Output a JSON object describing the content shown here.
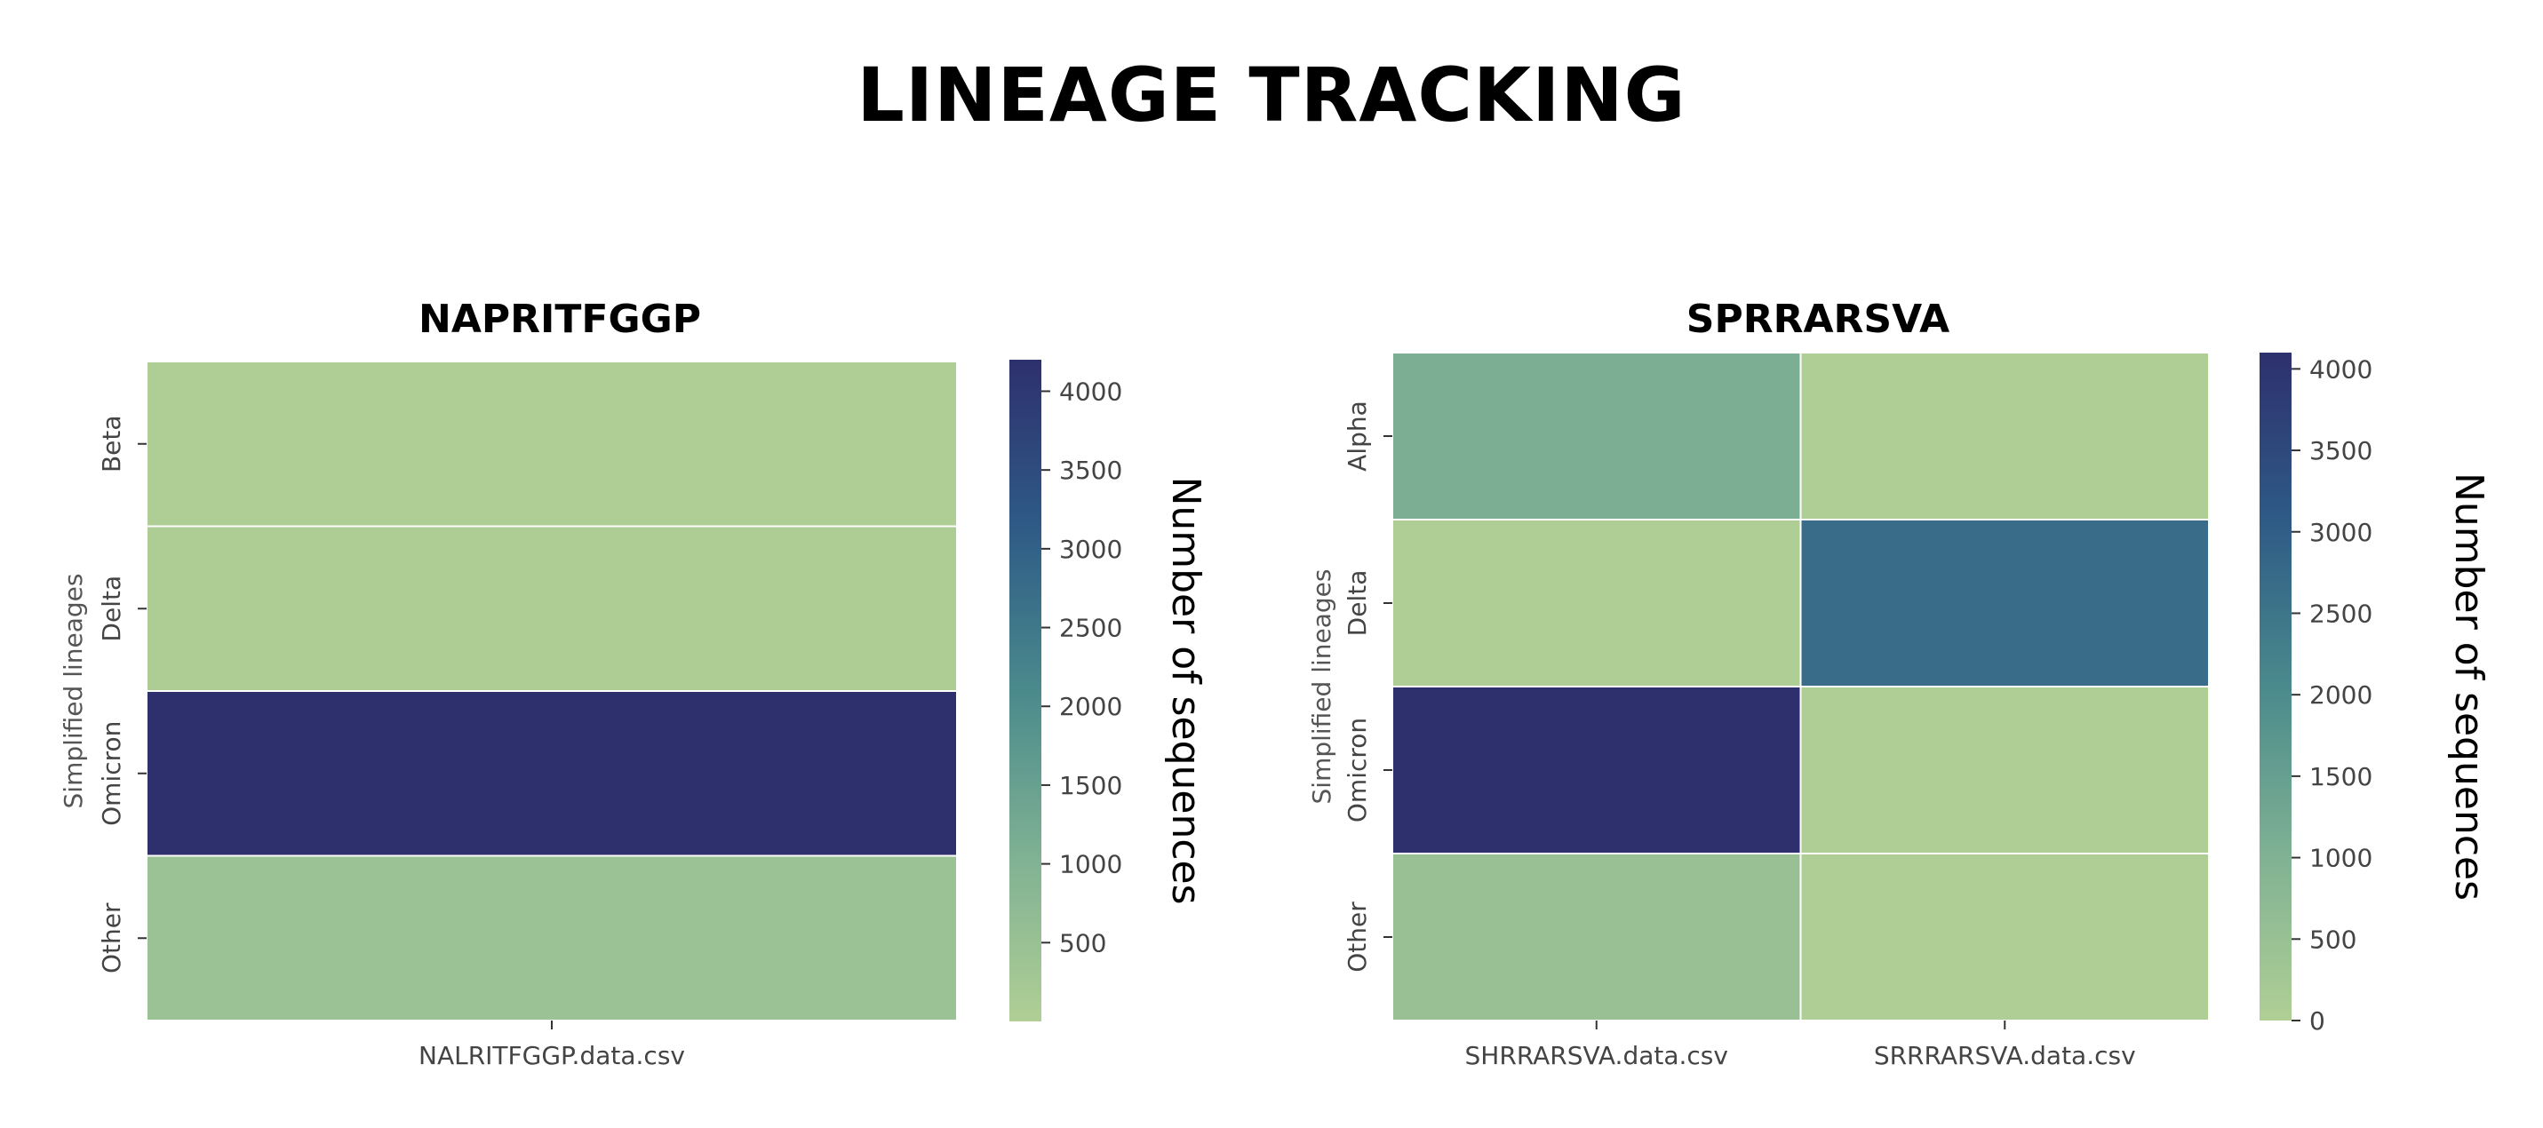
{
  "title": "LINEAGE TRACKING",
  "colormap": [
    "#b0cf95",
    "#7fb193",
    "#4a8a8c",
    "#2e5a86",
    "#2e306d"
  ],
  "chart_data": [
    {
      "type": "heatmap",
      "title": "NAPRITFGGP",
      "ylabel": "Simplified lineages",
      "xlabel": "",
      "columns": [
        "NALRITFGGP.data.csv"
      ],
      "rows": [
        "Beta",
        "Delta",
        "Omicron",
        "Other"
      ],
      "values": [
        [
          30
        ],
        [
          60
        ],
        [
          4200
        ],
        [
          450
        ]
      ],
      "colorbar": {
        "label": "Number of sequences",
        "range": [
          0,
          4200
        ],
        "ticks": [
          500,
          1000,
          1500,
          2000,
          2500,
          3000,
          3500,
          4000
        ]
      }
    },
    {
      "type": "heatmap",
      "title": "SPRRARSVA",
      "ylabel": "Simplified lineages",
      "xlabel": "",
      "columns": [
        "SHRRARSVA.data.csv",
        "SRRRARSVA.data.csv"
      ],
      "rows": [
        "Alpha",
        "Delta",
        "Omicron",
        "Other"
      ],
      "values": [
        [
          1100,
          20
        ],
        [
          30,
          2700
        ],
        [
          4100,
          20
        ],
        [
          500,
          20
        ]
      ],
      "colorbar": {
        "label": "Number of sequences",
        "range": [
          0,
          4100
        ],
        "ticks": [
          0,
          500,
          1000,
          1500,
          2000,
          2500,
          3000,
          3500,
          4000
        ]
      }
    }
  ]
}
